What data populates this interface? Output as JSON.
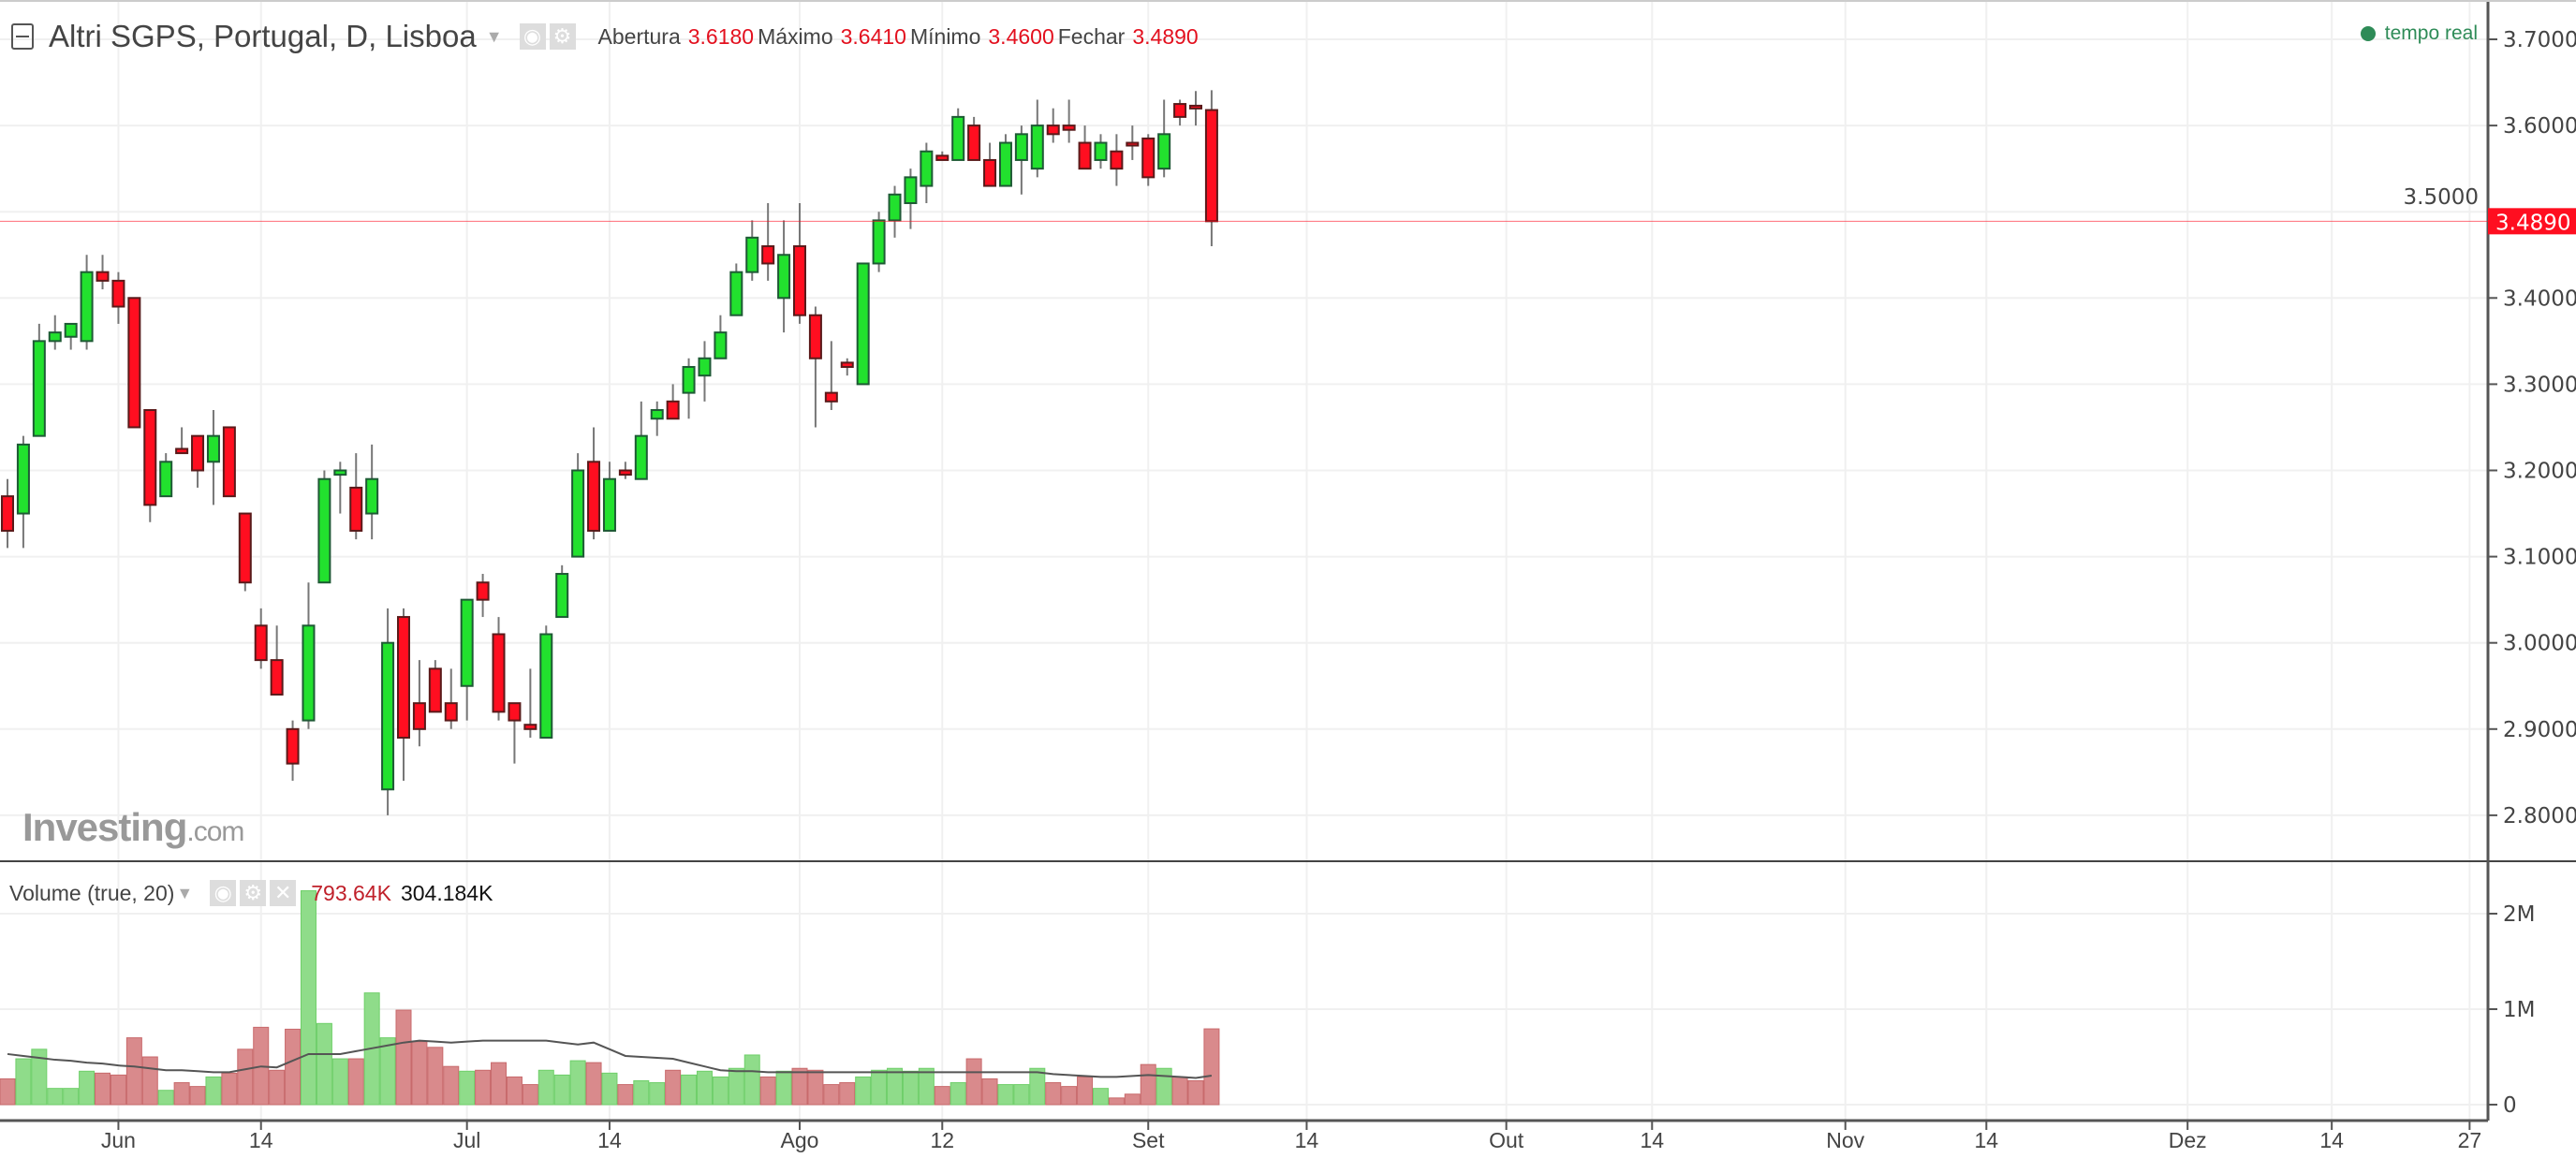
{
  "header": {
    "title": "Altri SGPS, Portugal, D, Lisboa",
    "ohlc": [
      {
        "label": "Abertura",
        "value": "3.6180"
      },
      {
        "label": "Máximo",
        "value": "3.6410"
      },
      {
        "label": "Mínimo",
        "value": "3.4600"
      },
      {
        "label": "Fechar",
        "value": "3.4890"
      }
    ],
    "realtime": "tempo real"
  },
  "volume_header": {
    "title": "Volume (true, 20)",
    "value": "793.64K",
    "ma_value": "304.184K"
  },
  "watermark": {
    "brand": "Investing",
    "suffix": ".com"
  },
  "colors": {
    "up": "#22e12e",
    "down": "#ff0e20",
    "up_border": "#1e5a35",
    "down_border": "#5a1a1a",
    "vol_up": "#8fdc8a",
    "vol_down": "#d98a8c",
    "price_line": "#ff0e20",
    "realtime": "#2e8b57"
  },
  "chart_data": [
    {
      "type": "candlestick",
      "last_price_label": "3.4890",
      "last_price": 3.489,
      "ylim": [
        2.75,
        3.72
      ],
      "yticks": [
        "2.8000",
        "2.9000",
        "3.0000",
        "3.1000",
        "3.2000",
        "3.3000",
        "3.4000",
        "3.5000",
        "3.6000",
        "3.7000"
      ],
      "grid": true,
      "xticks": [
        {
          "label": "Jun",
          "bar": 7
        },
        {
          "label": "14",
          "bar": 16
        },
        {
          "label": "Jul",
          "bar": 29
        },
        {
          "label": "14",
          "bar": 38
        },
        {
          "label": "Ago",
          "bar": 50
        },
        {
          "label": "12",
          "bar": 59
        },
        {
          "label": "Set",
          "bar": 72
        },
        {
          "label": "14",
          "bar": 82
        },
        {
          "label": "Out",
          "bar": 94.6
        },
        {
          "label": "14",
          "bar": 103.8
        },
        {
          "label": "Nov",
          "bar": 116
        },
        {
          "label": "14",
          "bar": 124.9
        },
        {
          "label": "Dez",
          "bar": 137.6
        },
        {
          "label": "14",
          "bar": 146.7
        },
        {
          "label": "27",
          "bar": 155.4
        }
      ],
      "ohlc": [
        [
          3.17,
          3.19,
          3.11,
          3.13
        ],
        [
          3.15,
          3.24,
          3.11,
          3.23
        ],
        [
          3.24,
          3.37,
          3.24,
          3.35
        ],
        [
          3.35,
          3.38,
          3.34,
          3.36
        ],
        [
          3.355,
          3.37,
          3.34,
          3.37
        ],
        [
          3.35,
          3.45,
          3.34,
          3.43
        ],
        [
          3.43,
          3.45,
          3.41,
          3.42
        ],
        [
          3.42,
          3.43,
          3.37,
          3.39
        ],
        [
          3.4,
          3.4,
          3.25,
          3.25
        ],
        [
          3.27,
          3.27,
          3.14,
          3.16
        ],
        [
          3.17,
          3.22,
          3.17,
          3.21
        ],
        [
          3.225,
          3.25,
          3.22,
          3.22
        ],
        [
          3.24,
          3.24,
          3.18,
          3.2
        ],
        [
          3.21,
          3.27,
          3.16,
          3.24
        ],
        [
          3.25,
          3.25,
          3.17,
          3.17
        ],
        [
          3.15,
          3.15,
          3.06,
          3.07
        ],
        [
          3.02,
          3.04,
          2.97,
          2.98
        ],
        [
          2.98,
          3.02,
          2.94,
          2.94
        ],
        [
          2.9,
          2.91,
          2.84,
          2.86
        ],
        [
          2.91,
          3.07,
          2.9,
          3.02
        ],
        [
          3.07,
          3.2,
          3.07,
          3.19
        ],
        [
          3.195,
          3.21,
          3.15,
          3.2
        ],
        [
          3.18,
          3.22,
          3.12,
          3.13
        ],
        [
          3.15,
          3.23,
          3.12,
          3.19
        ],
        [
          2.83,
          3.04,
          2.8,
          3.0
        ],
        [
          3.03,
          3.04,
          2.84,
          2.89
        ],
        [
          2.93,
          2.98,
          2.88,
          2.9
        ],
        [
          2.97,
          2.98,
          2.92,
          2.92
        ],
        [
          2.93,
          2.97,
          2.9,
          2.91
        ],
        [
          2.95,
          3.05,
          2.91,
          3.05
        ],
        [
          3.07,
          3.08,
          3.03,
          3.05
        ],
        [
          3.01,
          3.03,
          2.91,
          2.92
        ],
        [
          2.93,
          2.93,
          2.86,
          2.91
        ],
        [
          2.905,
          2.97,
          2.89,
          2.9
        ],
        [
          2.89,
          3.02,
          2.89,
          3.01
        ],
        [
          3.03,
          3.09,
          3.03,
          3.08
        ],
        [
          3.1,
          3.22,
          3.1,
          3.2
        ],
        [
          3.21,
          3.25,
          3.12,
          3.13
        ],
        [
          3.13,
          3.21,
          3.13,
          3.19
        ],
        [
          3.2,
          3.21,
          3.19,
          3.195
        ],
        [
          3.19,
          3.28,
          3.19,
          3.24
        ],
        [
          3.26,
          3.28,
          3.24,
          3.27
        ],
        [
          3.28,
          3.3,
          3.26,
          3.26
        ],
        [
          3.29,
          3.33,
          3.26,
          3.32
        ],
        [
          3.31,
          3.35,
          3.28,
          3.33
        ],
        [
          3.33,
          3.38,
          3.33,
          3.36
        ],
        [
          3.38,
          3.44,
          3.38,
          3.43
        ],
        [
          3.43,
          3.49,
          3.42,
          3.47
        ],
        [
          3.46,
          3.51,
          3.42,
          3.44
        ],
        [
          3.4,
          3.49,
          3.36,
          3.45
        ],
        [
          3.46,
          3.51,
          3.37,
          3.38
        ],
        [
          3.38,
          3.39,
          3.25,
          3.33
        ],
        [
          3.29,
          3.35,
          3.27,
          3.28
        ],
        [
          3.325,
          3.33,
          3.31,
          3.32
        ],
        [
          3.3,
          3.44,
          3.3,
          3.44
        ],
        [
          3.44,
          3.5,
          3.43,
          3.49
        ],
        [
          3.49,
          3.53,
          3.47,
          3.52
        ],
        [
          3.51,
          3.55,
          3.48,
          3.54
        ],
        [
          3.53,
          3.58,
          3.51,
          3.57
        ],
        [
          3.565,
          3.57,
          3.56,
          3.56
        ],
        [
          3.56,
          3.62,
          3.56,
          3.61
        ],
        [
          3.6,
          3.61,
          3.56,
          3.56
        ],
        [
          3.56,
          3.58,
          3.53,
          3.53
        ],
        [
          3.53,
          3.59,
          3.53,
          3.58
        ],
        [
          3.56,
          3.6,
          3.52,
          3.59
        ],
        [
          3.55,
          3.63,
          3.54,
          3.6
        ],
        [
          3.6,
          3.62,
          3.58,
          3.59
        ],
        [
          3.6,
          3.63,
          3.58,
          3.595
        ],
        [
          3.58,
          3.6,
          3.55,
          3.55
        ],
        [
          3.56,
          3.59,
          3.55,
          3.58
        ],
        [
          3.57,
          3.59,
          3.53,
          3.55
        ],
        [
          3.58,
          3.6,
          3.56,
          3.578
        ],
        [
          3.585,
          3.59,
          3.53,
          3.54
        ],
        [
          3.55,
          3.63,
          3.54,
          3.59
        ],
        [
          3.625,
          3.63,
          3.6,
          3.61
        ],
        [
          3.623,
          3.64,
          3.6,
          3.62
        ],
        [
          3.618,
          3.641,
          3.46,
          3.489
        ]
      ]
    },
    {
      "type": "bar",
      "title": "Volume (true, 20)",
      "unit": "M",
      "ylim": [
        0,
        2.5
      ],
      "yticks": [
        "0",
        "1M",
        "2M"
      ],
      "values": [
        0.27,
        0.48,
        0.58,
        0.17,
        0.17,
        0.35,
        0.33,
        0.31,
        0.7,
        0.5,
        0.15,
        0.23,
        0.19,
        0.29,
        0.33,
        0.58,
        0.81,
        0.36,
        0.79,
        2.24,
        0.85,
        0.48,
        0.48,
        1.17,
        0.7,
        0.99,
        0.66,
        0.6,
        0.4,
        0.35,
        0.36,
        0.44,
        0.29,
        0.21,
        0.36,
        0.31,
        0.46,
        0.44,
        0.33,
        0.21,
        0.25,
        0.23,
        0.36,
        0.31,
        0.35,
        0.29,
        0.38,
        0.52,
        0.29,
        0.35,
        0.38,
        0.36,
        0.21,
        0.23,
        0.29,
        0.36,
        0.38,
        0.35,
        0.38,
        0.19,
        0.23,
        0.48,
        0.27,
        0.21,
        0.21,
        0.38,
        0.23,
        0.19,
        0.29,
        0.17,
        0.07,
        0.11,
        0.42,
        0.38,
        0.29,
        0.25,
        0.79364
      ],
      "ma20": [
        0.53,
        0.51,
        0.49,
        0.47,
        0.46,
        0.44,
        0.43,
        0.41,
        0.4,
        0.38,
        0.36,
        0.36,
        0.35,
        0.34,
        0.34,
        0.37,
        0.4,
        0.39,
        0.46,
        0.53,
        0.53,
        0.53,
        0.56,
        0.59,
        0.62,
        0.65,
        0.67,
        0.66,
        0.65,
        0.66,
        0.67,
        0.67,
        0.67,
        0.67,
        0.67,
        0.65,
        0.63,
        0.65,
        0.58,
        0.51,
        0.5,
        0.49,
        0.48,
        0.44,
        0.4,
        0.36,
        0.35,
        0.35,
        0.34,
        0.34,
        0.34,
        0.34,
        0.34,
        0.34,
        0.34,
        0.34,
        0.34,
        0.34,
        0.34,
        0.34,
        0.34,
        0.34,
        0.34,
        0.34,
        0.34,
        0.34,
        0.32,
        0.31,
        0.3,
        0.29,
        0.29,
        0.3,
        0.31,
        0.3,
        0.29,
        0.28,
        0.304184
      ]
    }
  ]
}
